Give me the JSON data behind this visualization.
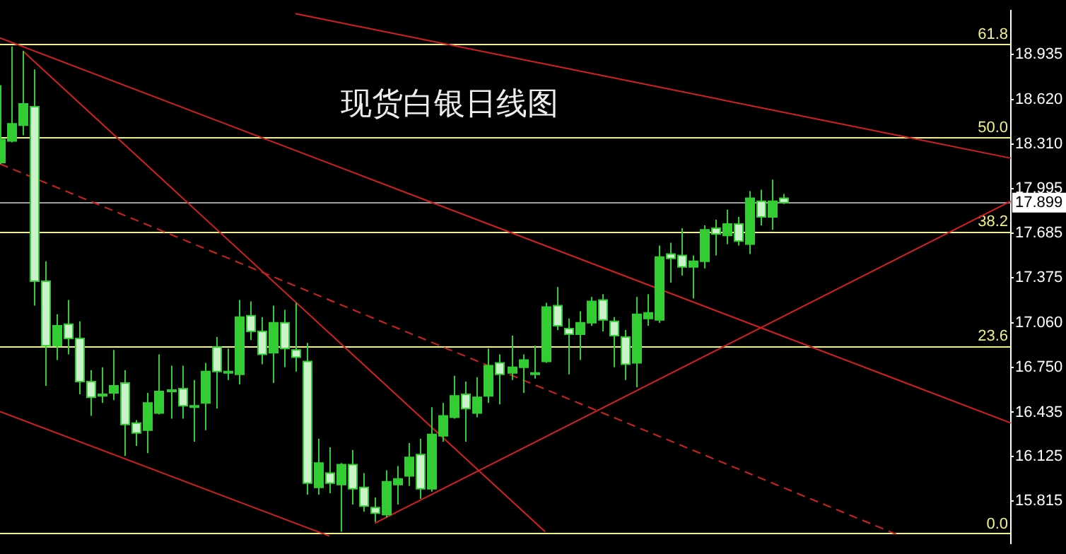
{
  "chart_data": {
    "type": "candlestick",
    "title": "现货白银日线图",
    "color": "#33cc33",
    "colors": [
      "#33cc33",
      "#33cc33",
      "#33cc33",
      "#ccf2cc",
      "#ccf2cc",
      "#33cc33",
      "#ccf2cc",
      "#ccf2cc",
      "#ccf2cc",
      "#33cc33",
      "#33cc33",
      "#ccf2cc",
      "#ccf2cc",
      "#33cc33",
      "#33cc33",
      "#33cc33",
      "#ccf2cc",
      "#ccf2cc",
      "#33cc33",
      "#ccf2cc",
      "#33cc33",
      "#33cc33",
      "#ccf2cc",
      "#ccf2cc",
      "#33cc33",
      "#ccf2cc",
      "#ccf2cc",
      "#ccf2cc",
      "#33cc33",
      "#ccf2cc",
      "#33cc33",
      "#ccf2cc",
      "#ccf2cc",
      "#ccf2cc",
      "#33cc33",
      "#33cc33",
      "#33cc33",
      "#ccf2cc",
      "#33cc33",
      "#33cc33",
      "#33cc33",
      "#ccf2cc",
      "#33cc33",
      "#33cc33",
      "#ccf2cc",
      "#33cc33",
      "#33cc33",
      "#33cc33",
      "#33cc33",
      "#ccf2cc",
      "#ccf2cc",
      "#33cc33",
      "#33cc33",
      "#ccf2cc",
      "#ccf2cc",
      "#ccf2cc",
      "#33cc33",
      "#33cc33",
      "#33cc33",
      "#ccf2cc",
      "#ccf2cc",
      "#33cc33",
      "#33cc33",
      "#ccf2cc",
      "#33cc33",
      "#ccf2cc",
      "#33cc33",
      "#ccf2cc",
      "#33cc33",
      "#ccf2cc",
      null,
      null,
      null,
      null,
      null,
      null,
      null,
      null,
      null,
      null,
      null,
      null,
      null,
      null,
      null,
      null,
      null,
      null,
      null,
      null
    ],
    "categories": [
      null,
      null,
      null,
      null,
      null,
      null,
      null,
      null,
      null,
      null,
      null,
      null,
      null,
      null,
      null,
      null,
      null,
      null,
      null,
      null,
      null,
      null,
      null,
      null,
      null,
      null,
      null,
      null,
      null,
      null,
      null,
      null,
      null,
      null,
      null,
      null,
      null,
      null,
      null,
      null,
      null,
      null,
      null,
      null,
      null,
      null,
      null,
      null,
      null,
      null,
      null,
      null,
      null,
      null,
      null,
      null,
      null,
      null,
      null,
      null,
      null,
      null,
      null,
      null,
      null,
      null,
      null,
      null,
      null,
      null,
      null,
      null,
      null,
      null,
      null,
      null,
      null,
      null,
      null,
      null,
      null,
      null,
      null,
      null,
      null,
      null,
      null,
      null,
      null,
      null
    ],
    "ylim": [
      15.52,
      19.24
    ],
    "yticks": [
      {
        "value": 18.935,
        "label": "18.935"
      },
      {
        "value": 18.62,
        "label": "18.620"
      },
      {
        "value": 18.31,
        "label": "18.310"
      },
      {
        "value": 17.995,
        "label": "17.995"
      },
      {
        "value": 17.685,
        "label": "17.685"
      },
      {
        "value": 17.375,
        "label": "17.375"
      },
      {
        "value": 17.06,
        "label": "17.060"
      },
      {
        "value": 16.75,
        "label": "16.750"
      },
      {
        "value": 16.435,
        "label": "16.435"
      },
      {
        "value": 16.125,
        "label": "16.125"
      },
      {
        "value": 15.815,
        "label": "15.815"
      }
    ],
    "tick_labels": "y",
    "grid": false,
    "legend": false,
    "marker": "none",
    "ohlc": [
      [
        18.18,
        18.72,
        18.17,
        18.34
      ],
      [
        18.33,
        18.99,
        18.32,
        18.45
      ],
      [
        18.44,
        18.96,
        18.37,
        18.59
      ],
      [
        18.57,
        18.83,
        17.18,
        17.35
      ],
      [
        17.35,
        17.49,
        16.62,
        16.9
      ],
      [
        16.9,
        17.12,
        16.8,
        17.04
      ],
      [
        17.05,
        17.22,
        16.84,
        16.95
      ],
      [
        16.95,
        17.07,
        16.56,
        16.65
      ],
      [
        16.65,
        16.73,
        16.41,
        16.54
      ],
      [
        16.55,
        16.75,
        16.5,
        16.56
      ],
      [
        16.57,
        16.87,
        16.52,
        16.62
      ],
      [
        16.64,
        16.73,
        16.13,
        16.35
      ],
      [
        16.36,
        16.38,
        16.2,
        16.29
      ],
      [
        16.31,
        16.57,
        16.15,
        16.5
      ],
      [
        16.43,
        16.84,
        16.42,
        16.58
      ],
      [
        16.58,
        16.76,
        16.39,
        16.59
      ],
      [
        16.6,
        16.76,
        16.39,
        16.48
      ],
      [
        16.48,
        16.66,
        16.23,
        16.47
      ],
      [
        16.5,
        16.78,
        16.31,
        16.72
      ],
      [
        16.89,
        16.96,
        16.46,
        16.72
      ],
      [
        16.71,
        16.88,
        16.66,
        16.72
      ],
      [
        16.7,
        17.22,
        16.63,
        17.1
      ],
      [
        17.11,
        17.21,
        16.94,
        17.0
      ],
      [
        17.0,
        17.1,
        16.77,
        16.84
      ],
      [
        16.85,
        17.18,
        16.64,
        17.06
      ],
      [
        17.06,
        17.15,
        16.75,
        16.88
      ],
      [
        16.87,
        17.2,
        16.72,
        16.82
      ],
      [
        16.79,
        16.92,
        15.86,
        15.94
      ],
      [
        15.91,
        16.25,
        15.86,
        16.08
      ],
      [
        16.01,
        16.19,
        15.87,
        15.94
      ],
      [
        15.93,
        16.08,
        15.6,
        16.07
      ],
      [
        16.07,
        16.17,
        15.79,
        15.9
      ],
      [
        15.91,
        16.01,
        15.74,
        15.78
      ],
      [
        15.77,
        15.84,
        15.67,
        15.73
      ],
      [
        15.72,
        16.03,
        15.7,
        15.95
      ],
      [
        15.93,
        16.06,
        15.79,
        15.97
      ],
      [
        15.99,
        16.22,
        15.92,
        16.12
      ],
      [
        16.14,
        16.25,
        15.83,
        15.9
      ],
      [
        15.9,
        16.47,
        15.88,
        16.28
      ],
      [
        16.27,
        16.5,
        16.23,
        16.41
      ],
      [
        16.4,
        16.69,
        16.39,
        16.55
      ],
      [
        16.56,
        16.65,
        16.23,
        16.46
      ],
      [
        16.43,
        16.68,
        16.4,
        16.54
      ],
      [
        16.55,
        16.88,
        16.5,
        16.76
      ],
      [
        16.78,
        16.84,
        16.49,
        16.7
      ],
      [
        16.71,
        16.97,
        16.66,
        16.75
      ],
      [
        16.75,
        16.84,
        16.57,
        16.8
      ],
      [
        16.7,
        16.9,
        16.67,
        16.71
      ],
      [
        16.79,
        17.2,
        16.78,
        17.17
      ],
      [
        17.18,
        17.31,
        17.01,
        17.04
      ],
      [
        17.02,
        17.09,
        16.7,
        16.98
      ],
      [
        16.98,
        17.14,
        16.8,
        17.06
      ],
      [
        17.06,
        17.24,
        17.04,
        17.21
      ],
      [
        17.22,
        17.26,
        17.0,
        17.08
      ],
      [
        17.07,
        17.1,
        16.75,
        16.97
      ],
      [
        16.96,
        17.01,
        16.66,
        16.77
      ],
      [
        16.78,
        17.24,
        16.61,
        17.12
      ],
      [
        17.09,
        17.26,
        17.04,
        17.13
      ],
      [
        17.08,
        17.6,
        17.06,
        17.52
      ],
      [
        17.54,
        17.62,
        17.34,
        17.51
      ],
      [
        17.53,
        17.72,
        17.39,
        17.45
      ],
      [
        17.45,
        17.53,
        17.23,
        17.49
      ],
      [
        17.49,
        17.74,
        17.44,
        17.71
      ],
      [
        17.72,
        17.78,
        17.53,
        17.68
      ],
      [
        17.67,
        17.85,
        17.61,
        17.75
      ],
      [
        17.75,
        17.8,
        17.6,
        17.63
      ],
      [
        17.61,
        17.98,
        17.54,
        17.93
      ],
      [
        17.91,
        17.99,
        17.74,
        17.8
      ],
      [
        17.8,
        18.06,
        17.71,
        17.91
      ],
      [
        17.93,
        17.96,
        17.89,
        17.899
      ],
      null,
      null,
      null,
      null,
      null,
      null,
      null,
      null,
      null,
      null,
      null,
      null,
      null,
      null,
      null,
      null,
      null,
      null,
      null,
      null
    ],
    "series": [
      {
        "type": "line",
        "color": "#d42020",
        "values": [
          19.05,
          null,
          null,
          null,
          null,
          null,
          null,
          null,
          null,
          null,
          null,
          null,
          null,
          null,
          null,
          null,
          null,
          null,
          null,
          null,
          null,
          null,
          null,
          null,
          null,
          null,
          null,
          null,
          null,
          null,
          null,
          null,
          null,
          null,
          null,
          null,
          null,
          null,
          null,
          null,
          null,
          null,
          null,
          null,
          null,
          null,
          null,
          null,
          null,
          null,
          null,
          null,
          null,
          null,
          null,
          null,
          null,
          null,
          null,
          null,
          null,
          null,
          null,
          null,
          null,
          null,
          null,
          null,
          null,
          null,
          null,
          null,
          null,
          null,
          null,
          null,
          null,
          null,
          null,
          null,
          null,
          null,
          null,
          null,
          null,
          null,
          null,
          null,
          null,
          16.36
        ]
      },
      {
        "type": "line",
        "color": "#d42020",
        "values": [
          null,
          null,
          null,
          null,
          null,
          null,
          null,
          null,
          null,
          null,
          null,
          null,
          null,
          null,
          null,
          null,
          null,
          null,
          null,
          null,
          null,
          null,
          null,
          null,
          null,
          null,
          19.22,
          null,
          null,
          null,
          null,
          null,
          null,
          null,
          null,
          null,
          null,
          null,
          null,
          null,
          null,
          null,
          null,
          null,
          null,
          null,
          null,
          null,
          null,
          null,
          null,
          null,
          null,
          null,
          null,
          null,
          null,
          null,
          null,
          null,
          null,
          null,
          null,
          null,
          null,
          null,
          null,
          null,
          null,
          null,
          null,
          null,
          null,
          null,
          null,
          null,
          null,
          null,
          null,
          null,
          null,
          null,
          null,
          null,
          null,
          null,
          null,
          null,
          null,
          18.21
        ]
      },
      {
        "type": "line",
        "color": "#d42020",
        "values": [
          null,
          null,
          18.96,
          null,
          null,
          null,
          null,
          null,
          null,
          null,
          null,
          null,
          null,
          null,
          null,
          null,
          null,
          null,
          null,
          null,
          null,
          null,
          null,
          null,
          null,
          null,
          null,
          null,
          null,
          null,
          null,
          null,
          null,
          null,
          null,
          null,
          null,
          null,
          null,
          null,
          null,
          null,
          null,
          null,
          null,
          null,
          null,
          null,
          15.6,
          null,
          null,
          null,
          null,
          null,
          null,
          null,
          null,
          null,
          null,
          null,
          null,
          null,
          null,
          null,
          null,
          null,
          null,
          null,
          null,
          null,
          null,
          null,
          null,
          null,
          null,
          null,
          null,
          null,
          null,
          null,
          null,
          null,
          null,
          null,
          null,
          null,
          null,
          null,
          null,
          null
        ]
      },
      {
        "type": "line",
        "color": "#d42020",
        "line_style": "dashed",
        "values": [
          18.17,
          null,
          null,
          null,
          null,
          null,
          null,
          null,
          null,
          null,
          null,
          null,
          null,
          null,
          null,
          null,
          null,
          null,
          null,
          null,
          null,
          null,
          null,
          null,
          null,
          null,
          null,
          null,
          null,
          null,
          null,
          null,
          null,
          null,
          null,
          null,
          null,
          null,
          null,
          null,
          null,
          null,
          null,
          null,
          null,
          null,
          null,
          null,
          null,
          null,
          null,
          null,
          null,
          null,
          null,
          null,
          null,
          null,
          null,
          null,
          null,
          null,
          null,
          null,
          null,
          null,
          null,
          null,
          null,
          null,
          null,
          null,
          null,
          null,
          null,
          null,
          null,
          null,
          null,
          15.58,
          null,
          null,
          null,
          null,
          null,
          null,
          null,
          null,
          null,
          null
        ]
      },
      {
        "type": "line",
        "color": "#d42020",
        "values": [
          16.44,
          null,
          null,
          null,
          null,
          null,
          null,
          null,
          null,
          null,
          null,
          null,
          null,
          null,
          null,
          null,
          null,
          null,
          null,
          null,
          null,
          null,
          null,
          null,
          null,
          null,
          null,
          null,
          null,
          15.57,
          null,
          null,
          null,
          null,
          null,
          null,
          null,
          null,
          null,
          null,
          null,
          null,
          null,
          null,
          null,
          null,
          null,
          null,
          null,
          null,
          null,
          null,
          null,
          null,
          null,
          null,
          null,
          null,
          null,
          null,
          null,
          null,
          null,
          null,
          null,
          null,
          null,
          null,
          null,
          null,
          null,
          null,
          null,
          null,
          null,
          null,
          null,
          null,
          null,
          null,
          null,
          null,
          null,
          null,
          null,
          null,
          null,
          null,
          null,
          null
        ]
      },
      {
        "type": "line",
        "color": "#d42020",
        "values": [
          null,
          null,
          null,
          null,
          null,
          null,
          null,
          null,
          null,
          null,
          null,
          null,
          null,
          null,
          null,
          null,
          null,
          null,
          null,
          null,
          null,
          null,
          null,
          null,
          null,
          null,
          null,
          null,
          null,
          null,
          null,
          null,
          null,
          15.66,
          null,
          null,
          null,
          null,
          null,
          null,
          null,
          null,
          null,
          null,
          null,
          null,
          null,
          null,
          null,
          null,
          null,
          null,
          null,
          null,
          null,
          null,
          null,
          null,
          null,
          null,
          null,
          null,
          null,
          null,
          null,
          null,
          null,
          null,
          null,
          null,
          null,
          null,
          null,
          null,
          null,
          null,
          null,
          null,
          null,
          null,
          null,
          null,
          null,
          null,
          null,
          null,
          null,
          null,
          null,
          17.91
        ]
      }
    ],
    "ref_lines": [
      {
        "axis": "y",
        "value": 19.01,
        "color": "#f0f08c"
      },
      {
        "axis": "y",
        "value": 18.36,
        "color": "#f0f08c"
      },
      {
        "axis": "y",
        "value": 17.7,
        "color": "#f0f08c"
      },
      {
        "axis": "y",
        "value": 16.9,
        "color": "#f0f08c"
      },
      {
        "axis": "y",
        "value": 15.59,
        "color": "#f0f08c"
      },
      {
        "axis": "y",
        "value": 17.899,
        "label": "17.899",
        "color": "#a0a0a0"
      }
    ],
    "annotations": [
      {
        "text": "61.8",
        "y": 19.01
      },
      {
        "text": "50.0",
        "y": 18.36
      },
      {
        "text": "38.2",
        "y": 17.7
      },
      {
        "text": "23.6",
        "y": 16.9
      },
      {
        "text": "0.0",
        "y": 15.59
      }
    ]
  }
}
